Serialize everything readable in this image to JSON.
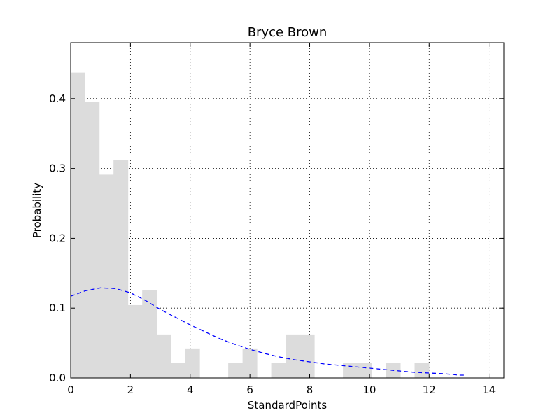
{
  "chart_data": {
    "type": "bar",
    "title": "Bryce Brown",
    "xlabel": "StandardPoints",
    "ylabel": "Probability",
    "xlim": [
      0,
      14.5
    ],
    "ylim": [
      0,
      0.48
    ],
    "xticks": [
      0,
      2,
      4,
      6,
      8,
      10,
      12,
      14
    ],
    "yticks": [
      0.0,
      0.1,
      0.2,
      0.3,
      0.4
    ],
    "xtick_labels": [
      "0",
      "2",
      "4",
      "6",
      "8",
      "10",
      "12",
      "14"
    ],
    "ytick_labels": [
      "0.0",
      "0.1",
      "0.2",
      "0.3",
      "0.4"
    ],
    "grid": true,
    "histogram": {
      "bin_width": 0.48,
      "bins": [
        {
          "x0": 0.0,
          "value": 0.437
        },
        {
          "x0": 0.48,
          "value": 0.395
        },
        {
          "x0": 0.96,
          "value": 0.291
        },
        {
          "x0": 1.44,
          "value": 0.312
        },
        {
          "x0": 1.92,
          "value": 0.104
        },
        {
          "x0": 2.4,
          "value": 0.125
        },
        {
          "x0": 2.88,
          "value": 0.062
        },
        {
          "x0": 3.36,
          "value": 0.021
        },
        {
          "x0": 3.84,
          "value": 0.042
        },
        {
          "x0": 4.32,
          "value": 0.0
        },
        {
          "x0": 4.8,
          "value": 0.0
        },
        {
          "x0": 5.28,
          "value": 0.021
        },
        {
          "x0": 5.76,
          "value": 0.042
        },
        {
          "x0": 6.24,
          "value": 0.0
        },
        {
          "x0": 6.72,
          "value": 0.021
        },
        {
          "x0": 7.2,
          "value": 0.062
        },
        {
          "x0": 7.68,
          "value": 0.062
        },
        {
          "x0": 8.16,
          "value": 0.0
        },
        {
          "x0": 8.64,
          "value": 0.0
        },
        {
          "x0": 9.12,
          "value": 0.021
        },
        {
          "x0": 9.6,
          "value": 0.021
        },
        {
          "x0": 10.08,
          "value": 0.0
        },
        {
          "x0": 10.56,
          "value": 0.021
        },
        {
          "x0": 11.04,
          "value": 0.0
        },
        {
          "x0": 11.52,
          "value": 0.021
        }
      ]
    },
    "fit_curve": {
      "style": "dashed",
      "color": "#0000ff",
      "points": [
        [
          0.0,
          0.117
        ],
        [
          0.5,
          0.125
        ],
        [
          1.0,
          0.129
        ],
        [
          1.5,
          0.128
        ],
        [
          2.0,
          0.122
        ],
        [
          2.5,
          0.111
        ],
        [
          3.0,
          0.098
        ],
        [
          3.5,
          0.087
        ],
        [
          4.0,
          0.076
        ],
        [
          4.5,
          0.066
        ],
        [
          5.0,
          0.056
        ],
        [
          5.5,
          0.048
        ],
        [
          6.0,
          0.041
        ],
        [
          6.5,
          0.035
        ],
        [
          7.0,
          0.03
        ],
        [
          7.5,
          0.026
        ],
        [
          8.0,
          0.023
        ],
        [
          8.5,
          0.02
        ],
        [
          9.0,
          0.018
        ],
        [
          9.5,
          0.016
        ],
        [
          10.0,
          0.014
        ],
        [
          10.5,
          0.012
        ],
        [
          11.0,
          0.01
        ],
        [
          11.5,
          0.008
        ],
        [
          12.0,
          0.007
        ],
        [
          12.5,
          0.006
        ],
        [
          13.0,
          0.004
        ],
        [
          13.2,
          0.004
        ]
      ]
    },
    "colors": {
      "bar": "#dcdcdc",
      "fit": "#0000ff"
    }
  }
}
